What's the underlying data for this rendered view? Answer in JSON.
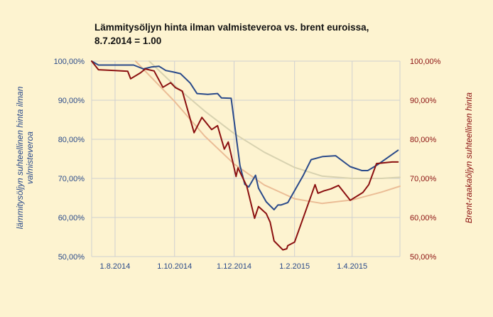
{
  "chart_data": {
    "type": "line",
    "title": "Lämmitysöljyn hinta ilman valmisteveroa vs. brent euroissa,",
    "subtitle": "8.7.2014 = 1.00",
    "ylabel_left": "lämmitysöljyn suhteellinen hinta ilman valmisteveroa",
    "ylabel_left_lines": [
      "lämmitysöljyn suhteellinen hinta ilman",
      "valmisteveroa"
    ],
    "ylabel_right": "Brent-raakaöljyn suhteellinen hinta",
    "xlim": [
      "2014-07-08",
      "2015-05-20"
    ],
    "ylim_left": [
      0.5,
      1.0
    ],
    "ylim_right": [
      0.5,
      1.0
    ],
    "x_ticks": [
      {
        "date": "2014-08-01",
        "label": "1.8.2014"
      },
      {
        "date": "2014-10-01",
        "label": "1.10.2014"
      },
      {
        "date": "2014-12-01",
        "label": "1.12.2014"
      },
      {
        "date": "2015-02-01",
        "label": "1.2.2015"
      },
      {
        "date": "2015-04-01",
        "label": "1.4.2015"
      }
    ],
    "y_ticks_left": [
      {
        "value": 1.0,
        "label": "100,00%"
      },
      {
        "value": 0.9,
        "label": "90,00%"
      },
      {
        "value": 0.8,
        "label": "80,00%"
      },
      {
        "value": 0.7,
        "label": "70,00%"
      },
      {
        "value": 0.6,
        "label": "60,00%"
      },
      {
        "value": 0.5,
        "label": "50,00%"
      }
    ],
    "y_ticks_right": [
      {
        "value": 1.0,
        "label": "100,00%"
      },
      {
        "value": 0.9,
        "label": "90,00%"
      },
      {
        "value": 0.8,
        "label": "80,00%"
      },
      {
        "value": 0.7,
        "label": "70,00%"
      },
      {
        "value": 0.6,
        "label": "60,00%"
      },
      {
        "value": 0.5,
        "label": "50,00%"
      }
    ],
    "grid": true,
    "colors": {
      "heating_oil": "#2a4a8a",
      "brent": "#8b1010",
      "trend_heating_oil": "#d8d2b0",
      "trend_brent": "#ebbd96",
      "grid": "#d0d0d0",
      "left_axis_text": "#2a4a8a",
      "right_axis_text": "#8b1010"
    },
    "series": [
      {
        "key": "heating_oil",
        "axis": "left",
        "points": [
          [
            "2014-07-08",
            1.0
          ],
          [
            "2014-07-15",
            0.99
          ],
          [
            "2014-07-22",
            0.99
          ],
          [
            "2014-08-01",
            0.99
          ],
          [
            "2014-08-10",
            0.99
          ],
          [
            "2014-08-20",
            0.99
          ],
          [
            "2014-08-30",
            0.98
          ],
          [
            "2014-09-07",
            0.985
          ],
          [
            "2014-09-15",
            0.987
          ],
          [
            "2014-09-22",
            0.976
          ],
          [
            "2014-09-30",
            0.972
          ],
          [
            "2014-10-07",
            0.968
          ],
          [
            "2014-10-17",
            0.944
          ],
          [
            "2014-10-24",
            0.917
          ],
          [
            "2014-11-04",
            0.915
          ],
          [
            "2014-11-14",
            0.917
          ],
          [
            "2014-11-18",
            0.906
          ],
          [
            "2014-11-28",
            0.905
          ],
          [
            "2014-12-07",
            0.733
          ],
          [
            "2014-12-12",
            0.685
          ],
          [
            "2014-12-16",
            0.678
          ],
          [
            "2014-12-23",
            0.708
          ],
          [
            "2014-12-26",
            0.675
          ],
          [
            "2015-01-03",
            0.64
          ],
          [
            "2015-01-11",
            0.62
          ],
          [
            "2015-01-15",
            0.632
          ],
          [
            "2015-01-18",
            0.632
          ],
          [
            "2015-01-25",
            0.638
          ],
          [
            "2015-02-10",
            0.708
          ],
          [
            "2015-02-18",
            0.748
          ],
          [
            "2015-03-02",
            0.756
          ],
          [
            "2015-03-15",
            0.758
          ],
          [
            "2015-03-30",
            0.73
          ],
          [
            "2015-04-11",
            0.72
          ],
          [
            "2015-04-17",
            0.72
          ],
          [
            "2015-04-27",
            0.735
          ],
          [
            "2015-05-18",
            0.772
          ]
        ]
      },
      {
        "key": "brent",
        "axis": "right",
        "points": [
          [
            "2014-07-08",
            1.0
          ],
          [
            "2014-07-15",
            0.978
          ],
          [
            "2014-08-01",
            0.976
          ],
          [
            "2014-08-14",
            0.974
          ],
          [
            "2014-08-17",
            0.955
          ],
          [
            "2014-08-27",
            0.97
          ],
          [
            "2014-09-01",
            0.98
          ],
          [
            "2014-09-10",
            0.975
          ],
          [
            "2014-09-19",
            0.933
          ],
          [
            "2014-09-27",
            0.945
          ],
          [
            "2014-10-02",
            0.932
          ],
          [
            "2014-10-09",
            0.923
          ],
          [
            "2014-10-21",
            0.817
          ],
          [
            "2014-10-29",
            0.856
          ],
          [
            "2014-11-08",
            0.825
          ],
          [
            "2014-11-14",
            0.835
          ],
          [
            "2014-11-21",
            0.775
          ],
          [
            "2014-11-25",
            0.793
          ],
          [
            "2014-12-03",
            0.705
          ],
          [
            "2014-12-05",
            0.727
          ],
          [
            "2014-12-14",
            0.68
          ],
          [
            "2014-12-22",
            0.598
          ],
          [
            "2014-12-26",
            0.628
          ],
          [
            "2015-01-03",
            0.61
          ],
          [
            "2015-01-07",
            0.588
          ],
          [
            "2015-01-11",
            0.54
          ],
          [
            "2015-01-20",
            0.517
          ],
          [
            "2015-01-24",
            0.52
          ],
          [
            "2015-01-25",
            0.528
          ],
          [
            "2015-02-01",
            0.537
          ],
          [
            "2015-02-22",
            0.684
          ],
          [
            "2015-02-25",
            0.662
          ],
          [
            "2015-03-03",
            0.668
          ],
          [
            "2015-03-10",
            0.673
          ],
          [
            "2015-03-18",
            0.682
          ],
          [
            "2015-03-30",
            0.644
          ],
          [
            "2015-04-12",
            0.664
          ],
          [
            "2015-04-18",
            0.684
          ],
          [
            "2015-04-26",
            0.738
          ],
          [
            "2015-05-12",
            0.742
          ],
          [
            "2015-05-18",
            0.742
          ]
        ]
      },
      {
        "key": "trend_heating_oil",
        "axis": "left",
        "points": [
          [
            "2014-09-05",
            1.0
          ],
          [
            "2014-10-01",
            0.938
          ],
          [
            "2014-11-01",
            0.872
          ],
          [
            "2014-12-01",
            0.815
          ],
          [
            "2015-01-01",
            0.767
          ],
          [
            "2015-02-01",
            0.728
          ],
          [
            "2015-03-01",
            0.706
          ],
          [
            "2015-04-01",
            0.7
          ],
          [
            "2015-05-01",
            0.7
          ],
          [
            "2015-05-20",
            0.703
          ]
        ]
      },
      {
        "key": "trend_brent",
        "axis": "right",
        "points": [
          [
            "2014-08-22",
            1.0
          ],
          [
            "2014-10-01",
            0.897
          ],
          [
            "2014-11-01",
            0.808
          ],
          [
            "2014-12-01",
            0.737
          ],
          [
            "2015-01-01",
            0.683
          ],
          [
            "2015-02-01",
            0.648
          ],
          [
            "2015-03-01",
            0.636
          ],
          [
            "2015-04-01",
            0.645
          ],
          [
            "2015-05-01",
            0.665
          ],
          [
            "2015-05-20",
            0.68
          ]
        ]
      }
    ]
  }
}
